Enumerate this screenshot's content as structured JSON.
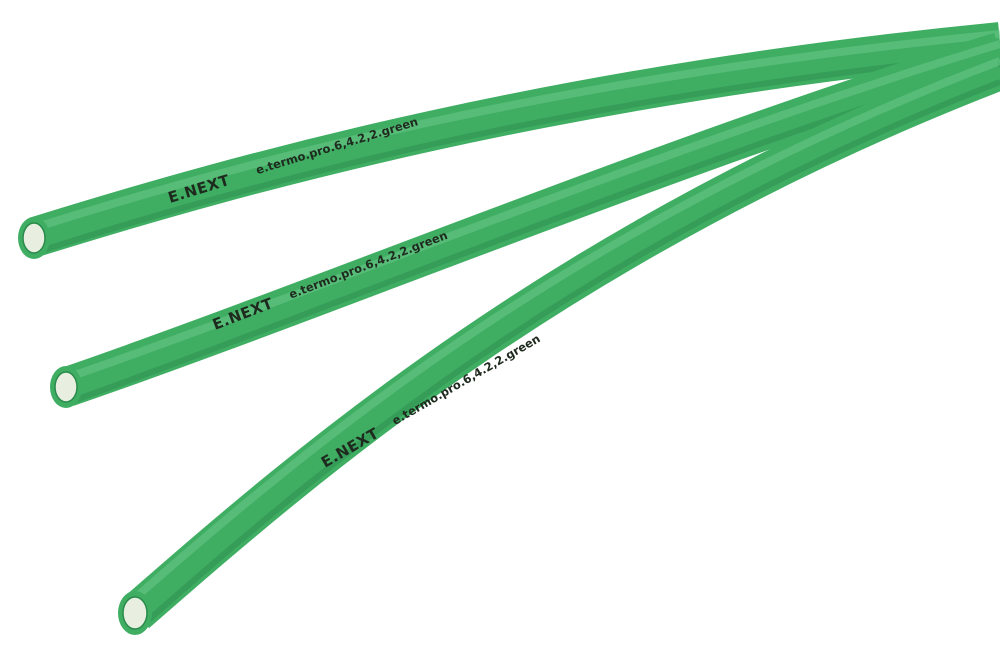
{
  "product": {
    "color_name": "green",
    "colors": {
      "tube_body": "#3fae63",
      "tube_highlight": "#6cc98a",
      "tube_shadow": "#2a8a4b",
      "tube_inner": "#e8efe0",
      "print_ink": "#1f2a1f",
      "background": "#ffffff"
    }
  },
  "tubes": [
    {
      "brand": "E.NEXT",
      "marking": "e.termo.pro.6,4.2,2.green"
    },
    {
      "brand": "E.NEXT",
      "marking": "e.termo.pro.6,4.2,2.green"
    },
    {
      "brand": "E.NEXT",
      "marking": "e.termo.pro.6,4.2,2.green"
    }
  ]
}
